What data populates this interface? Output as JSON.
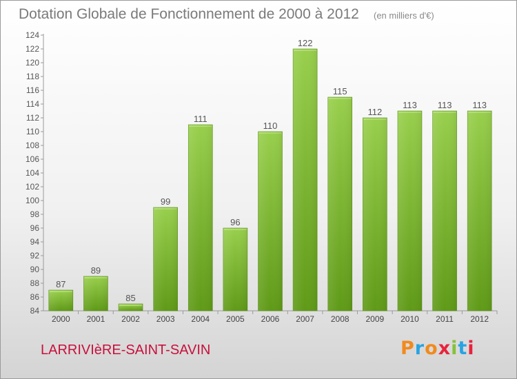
{
  "title": "Dotation Globale de Fonctionnement de 2000 à 2012",
  "subtitle": "(en milliers d'€)",
  "commune": "LARRIVIèRE-SAINT-SAVIN",
  "logo": {
    "text": "Proxiti",
    "colors": [
      "#f18a1d",
      "#29a3e2",
      "#f18a1d",
      "#e8233d",
      "#85c13b",
      "#29a3e2",
      "#e8233d"
    ]
  },
  "chart_data": {
    "type": "bar",
    "title": "Dotation Globale de Fonctionnement de 2000 à 2012",
    "subtitle": "(en milliers d'€)",
    "categories": [
      "2000",
      "2001",
      "2002",
      "2003",
      "2004",
      "2005",
      "2006",
      "2007",
      "2008",
      "2009",
      "2010",
      "2011",
      "2012"
    ],
    "values": [
      87,
      89,
      85,
      99,
      111,
      96,
      110,
      122,
      115,
      112,
      113,
      113,
      113
    ],
    "ylim": [
      84,
      124
    ],
    "yticks": [
      84,
      86,
      88,
      90,
      92,
      94,
      96,
      98,
      100,
      102,
      104,
      106,
      108,
      110,
      112,
      114,
      116,
      118,
      120,
      122,
      124
    ],
    "grid": false,
    "bar_color": "#7ab72e"
  }
}
